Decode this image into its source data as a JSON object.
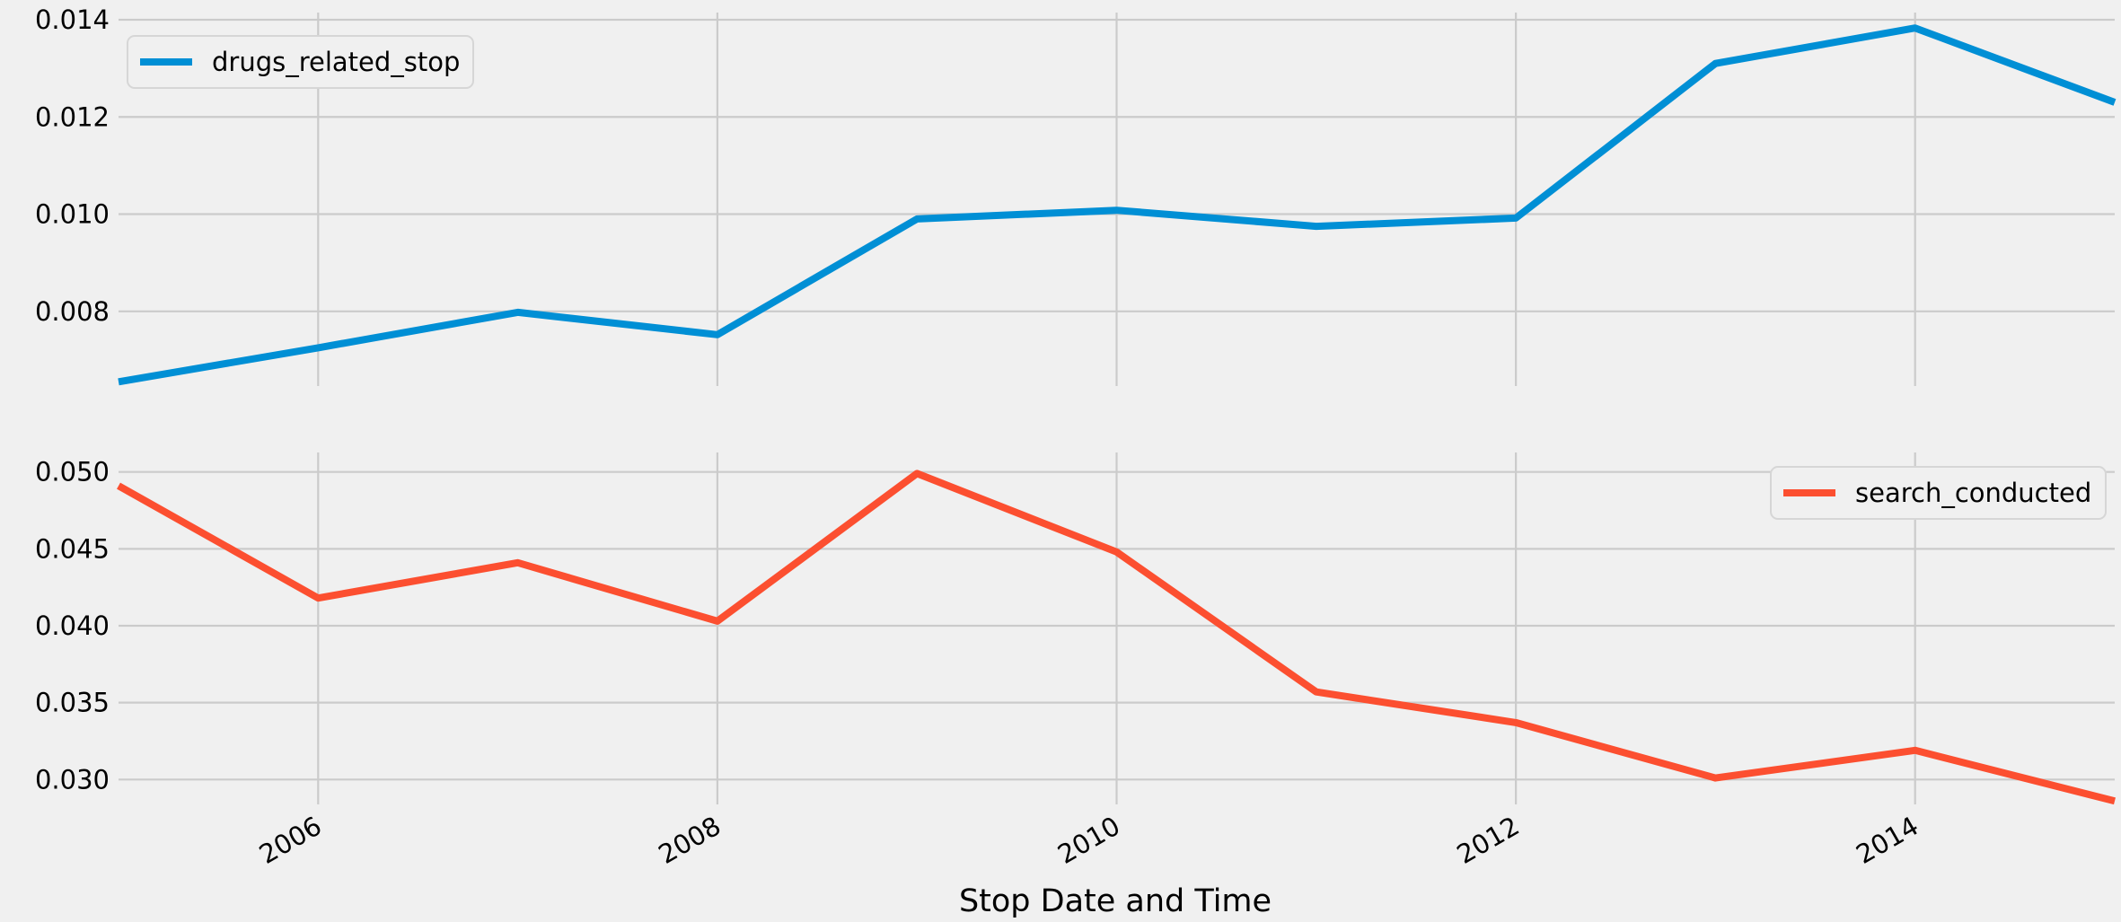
{
  "chart_data": [
    {
      "type": "line",
      "xlabel": "",
      "ylabel": "",
      "x": [
        2005,
        2006,
        2007,
        2008,
        2009,
        2010,
        2011,
        2012,
        2013,
        2014,
        2015
      ],
      "xlim": [
        2005,
        2015
      ],
      "ylim": [
        0.0065,
        0.014
      ],
      "yticks": [
        "0.008",
        "0.010",
        "0.012",
        "0.014"
      ],
      "ytick_values": [
        0.008,
        0.01,
        0.012,
        0.014
      ],
      "grid": true,
      "legend": "top-left",
      "series": [
        {
          "name": "drugs_related_stop",
          "color": "#008fd5",
          "values": [
            0.00655,
            0.00725,
            0.00798,
            0.00752,
            0.0099,
            0.01008,
            0.00975,
            0.00992,
            0.0131,
            0.01383,
            0.0123
          ]
        }
      ]
    },
    {
      "type": "line",
      "xlabel": "Stop Date and Time",
      "ylabel": "",
      "x": [
        2005,
        2006,
        2007,
        2008,
        2009,
        2010,
        2011,
        2012,
        2013,
        2014,
        2015
      ],
      "xlim": [
        2005,
        2015
      ],
      "ylim": [
        0.0285,
        0.0508
      ],
      "xticks": [
        "2006",
        "2008",
        "2010",
        "2012",
        "2014"
      ],
      "xtick_values": [
        2006,
        2008,
        2010,
        2012,
        2014
      ],
      "yticks": [
        "0.030",
        "0.035",
        "0.040",
        "0.045",
        "0.050"
      ],
      "ytick_values": [
        0.03,
        0.035,
        0.04,
        0.045,
        0.05
      ],
      "grid": true,
      "legend": "top-right",
      "series": [
        {
          "name": "search_conducted",
          "color": "#fc4f30",
          "values": [
            0.0491,
            0.0418,
            0.0441,
            0.0403,
            0.0499,
            0.0448,
            0.0357,
            0.0337,
            0.0301,
            0.0319,
            0.0286
          ]
        }
      ]
    }
  ]
}
